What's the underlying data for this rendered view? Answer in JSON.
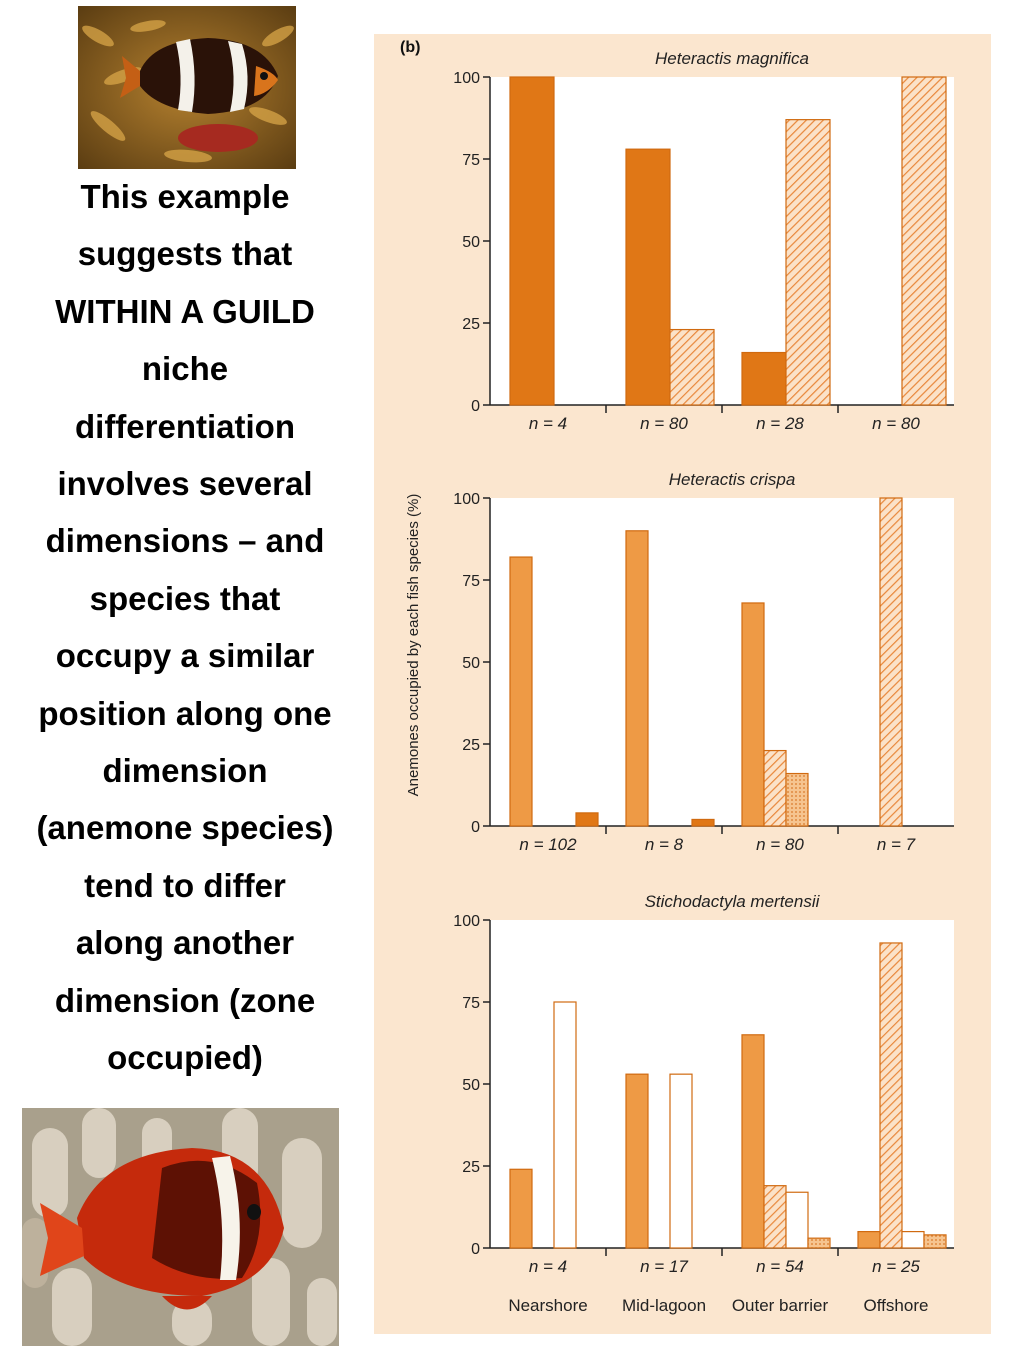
{
  "caption_lines": [
    "This example",
    "suggests that",
    "WITHIN A GUILD",
    "niche",
    "differentiation",
    "involves several",
    "dimensions – and",
    "species that",
    "occupy a similar",
    "position along one",
    "dimension",
    "(anemone species)",
    "tend to differ",
    "along another",
    "dimension (zone",
    "occupied)"
  ],
  "colors": {
    "panel_bg": "#fbe6cf",
    "dark_orange": "#e07716",
    "mid_orange": "#ee9a45",
    "hatch_orange": "#e8873a",
    "dotted_orange": "#f0a860",
    "outline_only": "#ffffff"
  },
  "chart_data": {
    "type": "bar",
    "figure_label": "(b)",
    "ylabel": "Anemones occupied by each fish species (%)",
    "ylim": [
      0,
      100
    ],
    "yticks": [
      "0",
      "25",
      "50",
      "75",
      "100"
    ],
    "zones": [
      "Nearshore",
      "Mid-lagoon",
      "Outer barrier",
      "Offshore"
    ],
    "styles": [
      "solid-dark",
      "solid-mid",
      "hatched",
      "dotted",
      "open"
    ],
    "panels": [
      {
        "title": "Heteractis magnifica",
        "n_labels": [
          "n = 4",
          "n = 80",
          "n = 28",
          "n = 80"
        ],
        "groups": [
          [
            {
              "style": "solid-dark",
              "value": 100
            }
          ],
          [
            {
              "style": "solid-dark",
              "value": 78
            },
            {
              "style": "hatched",
              "value": 23
            }
          ],
          [
            {
              "style": "solid-dark",
              "value": 16
            },
            {
              "style": "hatched",
              "value": 87
            }
          ],
          [
            {
              "style": "gap",
              "value": 0
            },
            {
              "style": "hatched",
              "value": 100
            }
          ]
        ]
      },
      {
        "title": "Heteractis crispa",
        "n_labels": [
          "n = 102",
          "n = 8",
          "n = 80",
          "n = 7"
        ],
        "groups": [
          [
            {
              "style": "solid-mid",
              "value": 82
            },
            {
              "style": "gap",
              "value": 0
            },
            {
              "style": "gap",
              "value": 0
            },
            {
              "style": "solid-dark",
              "value": 4
            }
          ],
          [
            {
              "style": "solid-mid",
              "value": 90
            },
            {
              "style": "gap",
              "value": 0
            },
            {
              "style": "gap",
              "value": 0
            },
            {
              "style": "solid-dark",
              "value": 2
            }
          ],
          [
            {
              "style": "solid-mid",
              "value": 68
            },
            {
              "style": "hatched",
              "value": 23
            },
            {
              "style": "dotted",
              "value": 16
            }
          ],
          [
            {
              "style": "gap",
              "value": 0
            },
            {
              "style": "hatched",
              "value": 100
            }
          ]
        ]
      },
      {
        "title": "Stichodactyla mertensii",
        "n_labels": [
          "n = 4",
          "n = 17",
          "n = 54",
          "n = 25"
        ],
        "groups": [
          [
            {
              "style": "solid-mid",
              "value": 24
            },
            {
              "style": "gap",
              "value": 0
            },
            {
              "style": "open",
              "value": 75
            }
          ],
          [
            {
              "style": "solid-mid",
              "value": 53
            },
            {
              "style": "gap",
              "value": 0
            },
            {
              "style": "open",
              "value": 53
            }
          ],
          [
            {
              "style": "solid-mid",
              "value": 65
            },
            {
              "style": "hatched",
              "value": 19
            },
            {
              "style": "open",
              "value": 17
            },
            {
              "style": "dotted",
              "value": 3
            }
          ],
          [
            {
              "style": "solid-mid",
              "value": 5
            },
            {
              "style": "hatched",
              "value": 93
            },
            {
              "style": "open",
              "value": 5
            },
            {
              "style": "dotted",
              "value": 4
            }
          ]
        ]
      }
    ]
  }
}
